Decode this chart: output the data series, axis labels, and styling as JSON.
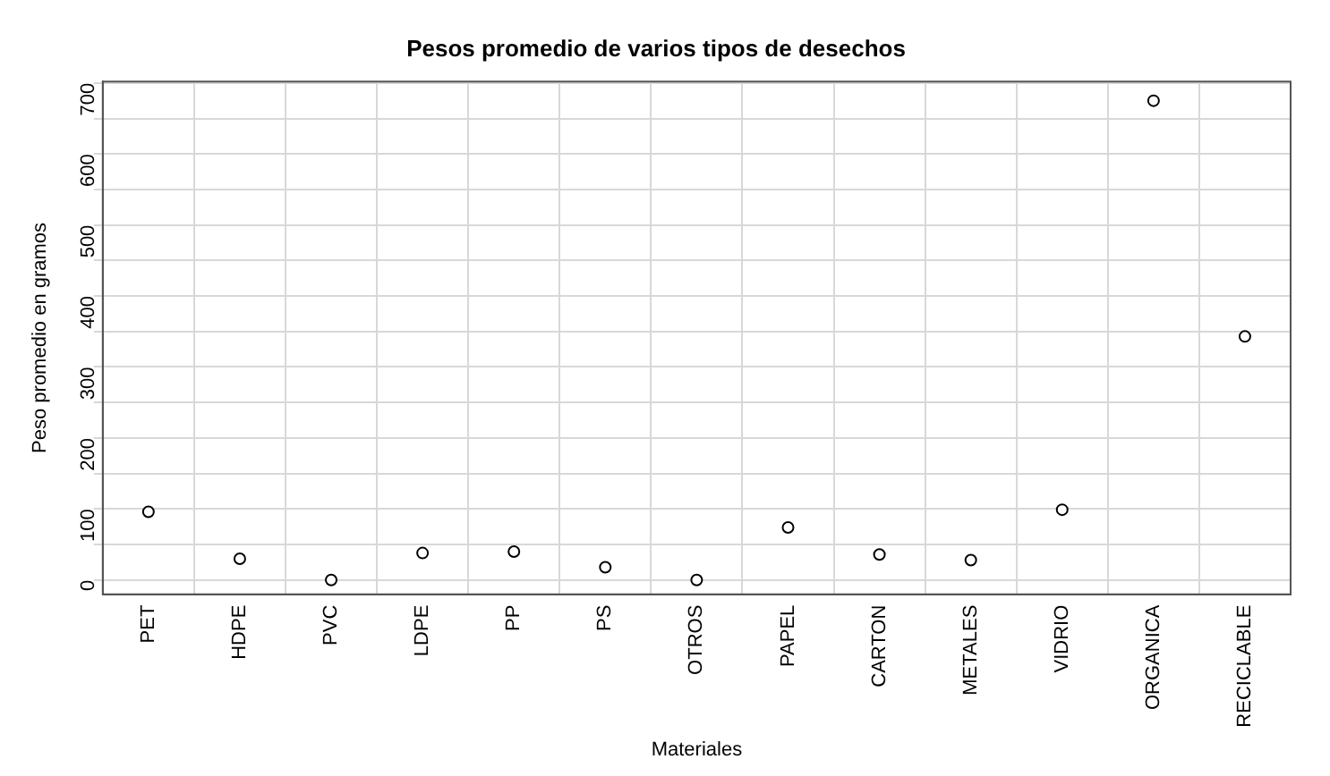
{
  "chart_data": {
    "type": "scatter",
    "title": "Pesos promedio de varios tipos de desechos",
    "xlabel": "Materiales",
    "ylabel": "Peso promedio en gramos",
    "categories": [
      "PET",
      "HDPE",
      "PVC",
      "LDPE",
      "PP",
      "PS",
      "OTROS",
      "PAPEL",
      "CARTON",
      "METALES",
      "VIDRIO",
      "ORGANICA",
      "RECICLABLE"
    ],
    "series": [
      {
        "color": "#000000",
        "values": [
          96,
          30,
          0,
          38,
          40,
          18,
          0,
          74,
          36,
          28,
          99,
          675,
          343
        ]
      }
    ],
    "ylim": [
      -20,
      702
    ],
    "yticks": [
      0,
      {
        "value": 50,
        "label": null
      },
      100,
      {
        "value": 150,
        "label": null
      },
      200,
      {
        "value": 250,
        "label": null
      },
      300,
      {
        "value": 350,
        "label": null
      },
      400,
      {
        "value": 450,
        "label": null
      },
      500,
      {
        "value": 550,
        "label": null
      },
      600,
      {
        "value": 650,
        "label": null
      },
      700
    ],
    "grid": true,
    "legend": false,
    "marker": "circle"
  }
}
